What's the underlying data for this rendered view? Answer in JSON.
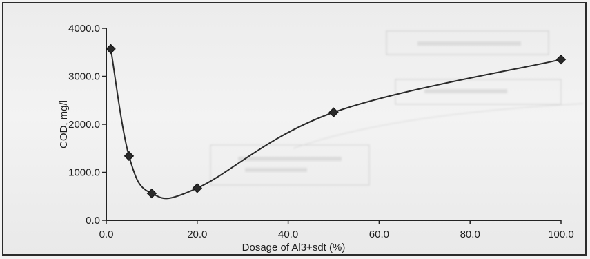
{
  "chart_data": {
    "type": "line",
    "title": "",
    "xlabel": "Dosage of Al3+sdt (%)",
    "ylabel": "COD, mg/l",
    "x_ticks": [
      "0.0",
      "20.0",
      "40.0",
      "60.0",
      "80.0",
      "100.0"
    ],
    "y_ticks": [
      "0.0",
      "1000.0",
      "2000.0",
      "3000.0",
      "4000.0"
    ],
    "xlim": [
      0,
      100
    ],
    "ylim": [
      0,
      4000
    ],
    "grid": false,
    "legend": "none",
    "series": [
      {
        "points": [
          {
            "x": 1,
            "y": 3570
          },
          {
            "x": 5,
            "y": 1340
          },
          {
            "x": 10,
            "y": 560
          },
          {
            "x": 20,
            "y": 670
          },
          {
            "x": 50,
            "y": 2250
          },
          {
            "x": 100,
            "y": 3350
          }
        ],
        "marker": "diamond",
        "color": "#2a2a2a"
      }
    ]
  }
}
